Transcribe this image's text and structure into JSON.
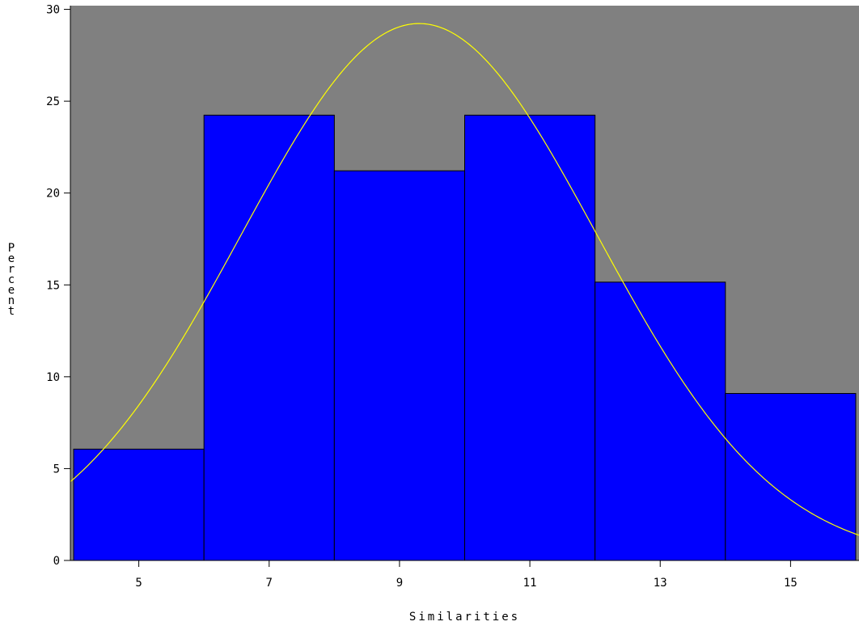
{
  "chart_data": {
    "type": "bar",
    "title": "",
    "xlabel": "Similarities",
    "ylabel": "Percent",
    "bins": [
      {
        "x0": 4,
        "x1": 6,
        "midpoint": 5,
        "value": 6.06
      },
      {
        "x0": 6,
        "x1": 8,
        "midpoint": 7,
        "value": 24.24
      },
      {
        "x0": 8,
        "x1": 10,
        "midpoint": 9,
        "value": 21.21
      },
      {
        "x0": 10,
        "x1": 12,
        "midpoint": 11,
        "value": 24.24
      },
      {
        "x0": 12,
        "x1": 14,
        "midpoint": 13,
        "value": 15.15
      },
      {
        "x0": 14,
        "x1": 16,
        "midpoint": 15,
        "value": 9.09
      }
    ],
    "x_tick_labels": [
      "5",
      "7",
      "9",
      "11",
      "13",
      "15"
    ],
    "y_tick_labels": [
      "0",
      "5",
      "10",
      "15",
      "20",
      "25",
      "30"
    ],
    "xlim": [
      3.95,
      16.05
    ],
    "ylim": [
      0,
      30.2
    ],
    "normal_curve": {
      "mean": 9.3,
      "sd": 2.73,
      "bin_width": 2,
      "color": "#ffff00"
    },
    "grid": false,
    "colors": {
      "plot_background": "#808080",
      "bar_fill": "#0000ff",
      "bar_edge": "#000000",
      "axis": "#000000"
    }
  }
}
